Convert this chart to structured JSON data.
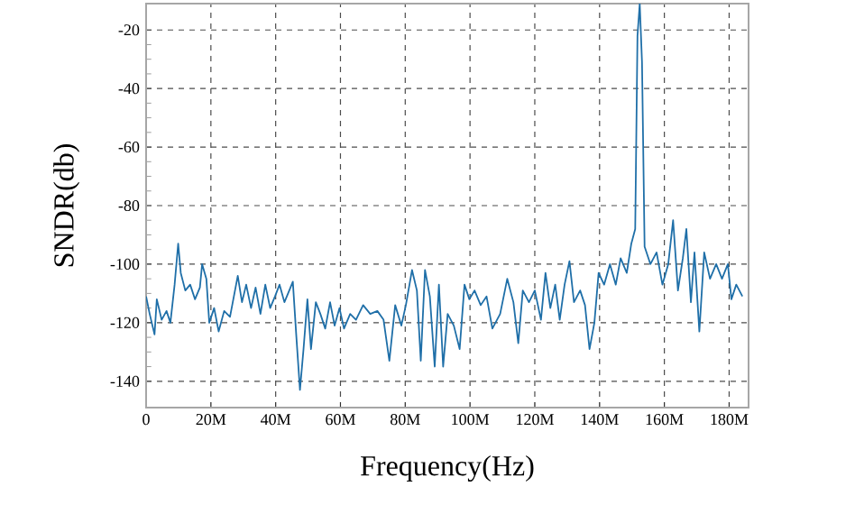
{
  "chart_data": {
    "type": "line",
    "xlabel": "Frequency(Hz)",
    "ylabel": "SNDR(db)",
    "xlim": [
      0,
      186000000
    ],
    "ylim": [
      -149,
      -11
    ],
    "xticks": [
      0,
      {
        "value": 20000000,
        "label": "20M"
      },
      {
        "value": 40000000,
        "label": "40M"
      },
      {
        "value": 60000000,
        "label": "60M"
      },
      {
        "value": 80000000,
        "label": "80M"
      },
      {
        "value": 100000000,
        "label": "100M"
      },
      {
        "value": 120000000,
        "label": "120M"
      },
      {
        "value": 140000000,
        "label": "140M"
      },
      {
        "value": 160000000,
        "label": "160M"
      },
      {
        "value": 180000000,
        "label": "180M"
      }
    ],
    "yticks": [
      -20,
      -40,
      -60,
      -80,
      -100,
      -120,
      -140
    ],
    "grid": true,
    "marker": "none",
    "line_style": "solid",
    "series": [
      {
        "color": "#1f6fa8",
        "x": [
          0,
          1100000,
          2600000,
          3300000,
          4800000,
          6300000,
          7500000,
          8800000,
          9900000,
          10700000,
          12100000,
          13600000,
          15100000,
          16600000,
          17300000,
          18600000,
          19500000,
          21000000,
          22400000,
          24100000,
          25900000,
          28300000,
          29600000,
          30900000,
          32400000,
          33800000,
          35300000,
          36800000,
          38300000,
          39800000,
          41200000,
          42700000,
          44200000,
          45300000,
          46400000,
          47500000,
          48600000,
          49800000,
          50900000,
          52400000,
          53800000,
          55300000,
          56800000,
          58200000,
          59700000,
          61100000,
          63000000,
          64800000,
          67000000,
          69200000,
          71400000,
          73300000,
          75100000,
          76900000,
          78800000,
          80200000,
          82100000,
          83600000,
          84800000,
          86100000,
          87600000,
          89100000,
          90400000,
          91700000,
          93100000,
          95000000,
          96800000,
          98300000,
          99800000,
          101400000,
          103300000,
          105100000,
          106900000,
          109300000,
          111500000,
          113400000,
          114900000,
          116300000,
          118200000,
          120000000,
          121900000,
          123300000,
          124800000,
          126300000,
          127700000,
          129200000,
          130700000,
          132100000,
          134000000,
          135500000,
          136900000,
          138400000,
          139700000,
          141400000,
          143200000,
          145000000,
          146500000,
          148400000,
          149800000,
          151000000,
          151700000,
          152400000,
          153100000,
          153900000,
          155700000,
          157600000,
          159400000,
          161200000,
          162700000,
          164200000,
          165700000,
          166800000,
          168200000,
          169300000,
          170800000,
          172300000,
          174100000,
          176000000,
          177800000,
          179600000,
          180700000,
          182200000,
          184100000
        ],
        "values": [
          -111,
          -117,
          -124,
          -112,
          -119,
          -116,
          -120,
          -107,
          -93,
          -103,
          -109,
          -107,
          -112,
          -108,
          -100,
          -105,
          -120,
          -115,
          -123,
          -116,
          -118,
          -104,
          -113,
          -107,
          -115,
          -108,
          -117,
          -107,
          -115,
          -111,
          -107,
          -113,
          -109,
          -106,
          -125,
          -143,
          -129,
          -112,
          -129,
          -113,
          -117,
          -122,
          -113,
          -121,
          -115,
          -122,
          -117,
          -119,
          -114,
          -117,
          -116,
          -119,
          -133,
          -114,
          -121,
          -114,
          -102,
          -109,
          -133,
          -102,
          -111,
          -135,
          -107,
          -135,
          -117,
          -121,
          -129,
          -107,
          -112,
          -109,
          -114,
          -111,
          -122,
          -117,
          -105,
          -113,
          -127,
          -109,
          -113,
          -109,
          -119,
          -103,
          -115,
          -107,
          -119,
          -107,
          -99,
          -113,
          -109,
          -114,
          -129,
          -120,
          -103,
          -107,
          -100,
          -107,
          -98,
          -103,
          -93,
          -88,
          -22,
          -11,
          -31,
          -94,
          -100,
          -96,
          -107,
          -100,
          -85,
          -109,
          -98,
          -88,
          -113,
          -96,
          -123,
          -96,
          -105,
          -100,
          -105,
          -100,
          -112,
          -107,
          -111
        ]
      }
    ]
  }
}
